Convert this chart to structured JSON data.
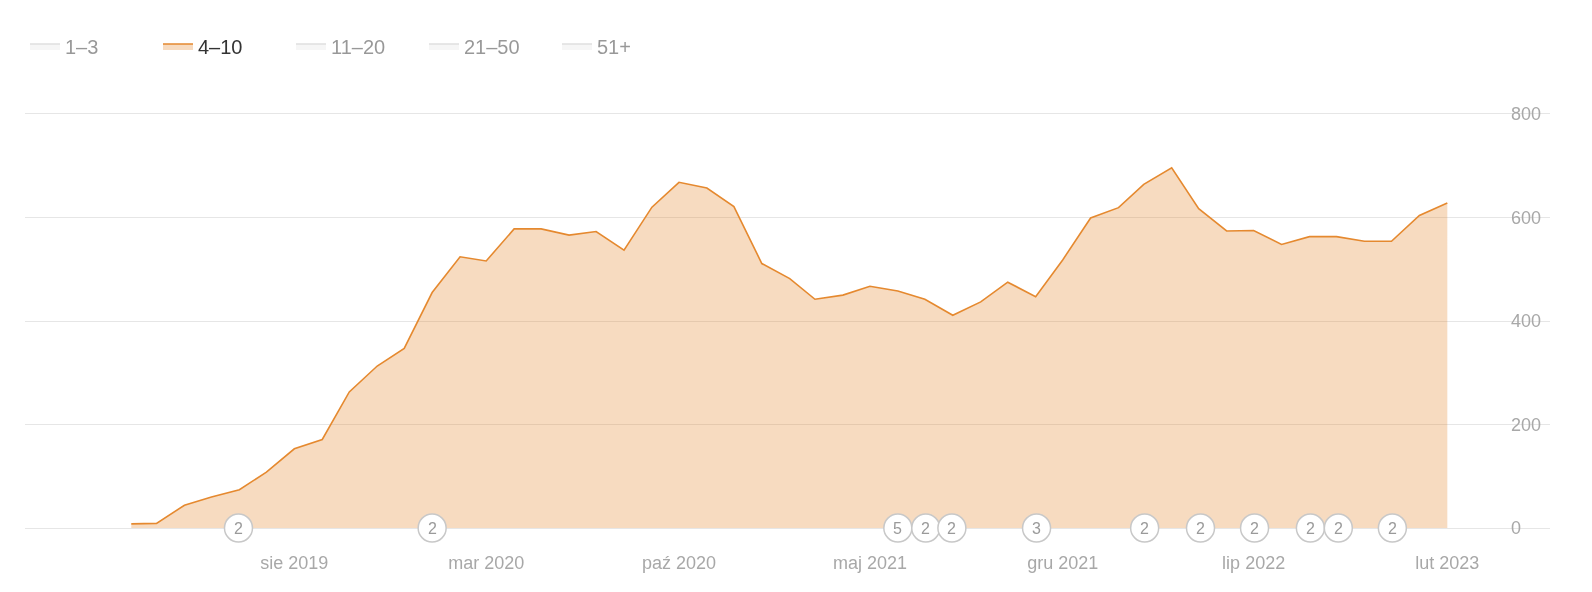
{
  "chart_data": {
    "type": "area",
    "x": [
      "2019-02",
      "2019-03",
      "2019-04",
      "2019-05",
      "2019-06",
      "2019-07",
      "2019-08",
      "2019-09",
      "2019-10",
      "2019-11",
      "2019-12",
      "2020-01",
      "2020-02",
      "2020-03",
      "2020-04",
      "2020-05",
      "2020-06",
      "2020-07",
      "2020-08",
      "2020-09",
      "2020-10",
      "2020-11",
      "2020-12",
      "2021-01",
      "2021-02",
      "2021-03",
      "2021-04",
      "2021-05",
      "2021-06",
      "2021-07",
      "2021-08",
      "2021-09",
      "2021-10",
      "2021-11",
      "2021-12",
      "2022-01",
      "2022-02",
      "2022-03",
      "2022-04",
      "2022-05",
      "2022-06",
      "2022-07",
      "2022-08",
      "2022-09",
      "2022-10",
      "2022-11",
      "2022-12",
      "2023-01",
      "2023-02"
    ],
    "series": [
      {
        "name": "1–3",
        "values": [
          null,
          null,
          null,
          null,
          null,
          null,
          null,
          null,
          null,
          null,
          null,
          null,
          null,
          null,
          null,
          null,
          null,
          null,
          null,
          null,
          null,
          null,
          null,
          null,
          null,
          null,
          null,
          null,
          null,
          null,
          null,
          null,
          null,
          null,
          null,
          null,
          null,
          null,
          null,
          null,
          null,
          null,
          null,
          null,
          null,
          null,
          null,
          null,
          null
        ]
      },
      {
        "name": "4–10",
        "color": "#e5892f",
        "values": [
          8,
          9,
          44,
          60,
          74,
          108,
          153,
          171,
          263,
          313,
          347,
          455,
          524,
          516,
          578,
          578,
          566,
          573,
          537,
          620,
          668,
          657,
          621,
          511,
          482,
          442,
          450,
          467,
          458,
          442,
          411,
          437,
          475,
          447,
          518,
          599,
          619,
          664,
          696,
          617,
          574,
          575,
          548,
          563,
          563,
          554,
          554,
          604,
          628
        ]
      },
      {
        "name": "11–20",
        "values": [
          null,
          null,
          null,
          null,
          null,
          null,
          null,
          null,
          null,
          null,
          null,
          null,
          null,
          null,
          null,
          null,
          null,
          null,
          null,
          null,
          null,
          null,
          null,
          null,
          null,
          null,
          null,
          null,
          null,
          null,
          null,
          null,
          null,
          null,
          null,
          null,
          null,
          null,
          null,
          null,
          null,
          null,
          null,
          null,
          null,
          null,
          null,
          null,
          null
        ]
      },
      {
        "name": "21–50",
        "values": [
          null,
          null,
          null,
          null,
          null,
          null,
          null,
          null,
          null,
          null,
          null,
          null,
          null,
          null,
          null,
          null,
          null,
          null,
          null,
          null,
          null,
          null,
          null,
          null,
          null,
          null,
          null,
          null,
          null,
          null,
          null,
          null,
          null,
          null,
          null,
          null,
          null,
          null,
          null,
          null,
          null,
          null,
          null,
          null,
          null,
          null,
          null,
          null,
          null
        ]
      },
      {
        "name": "51+",
        "values": [
          null,
          null,
          null,
          null,
          null,
          null,
          null,
          null,
          null,
          null,
          null,
          null,
          null,
          null,
          null,
          null,
          null,
          null,
          null,
          null,
          null,
          null,
          null,
          null,
          null,
          null,
          null,
          null,
          null,
          null,
          null,
          null,
          null,
          null,
          null,
          null,
          null,
          null,
          null,
          null,
          null,
          null,
          null,
          null,
          null,
          null,
          null,
          null,
          null
        ]
      }
    ],
    "xlim": [
      "2018-10-06",
      "2023-05-26"
    ],
    "xticks": [
      {
        "value": "2019-08",
        "label": "sie 2019"
      },
      {
        "value": "2020-03",
        "label": "mar 2020"
      },
      {
        "value": "2020-10",
        "label": "paź 2020"
      },
      {
        "value": "2021-05",
        "label": "maj 2021"
      },
      {
        "value": "2021-12",
        "label": "gru 2021"
      },
      {
        "value": "2022-07",
        "label": "lip 2022"
      },
      {
        "value": "2023-02",
        "label": "lut 2023"
      }
    ],
    "ylim": [
      0,
      800
    ],
    "yticks": [
      0,
      200,
      400,
      600,
      800
    ],
    "grid": "y",
    "legend": "top left",
    "annotations": [
      {
        "text": "2",
        "x": "2019-05-31",
        "y": 0
      },
      {
        "text": "2",
        "x": "2020-01-01",
        "y": 0
      },
      {
        "text": "5",
        "x": "2021-06-01",
        "y": 0
      },
      {
        "text": "2",
        "x": "2021-07-02",
        "y": 0
      },
      {
        "text": "2",
        "x": "2021-07-31",
        "y": 0
      },
      {
        "text": "3",
        "x": "2021-11-02",
        "y": 0
      },
      {
        "text": "2",
        "x": "2022-03-02",
        "y": 0
      },
      {
        "text": "2",
        "x": "2022-05-03",
        "y": 0
      },
      {
        "text": "2",
        "x": "2022-07-02",
        "y": 0
      },
      {
        "text": "2",
        "x": "2022-09-02",
        "y": 0
      },
      {
        "text": "2",
        "x": "2022-10-03",
        "y": 0
      },
      {
        "text": "2",
        "x": "2022-12-02",
        "y": 0
      }
    ]
  }
}
